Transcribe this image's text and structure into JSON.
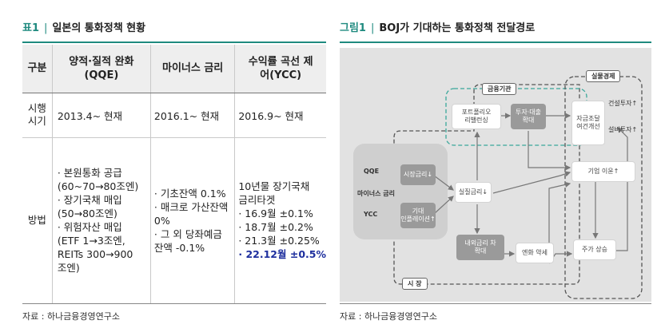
{
  "left": {
    "title_label": "표1",
    "title_text": "일본의 통화정책 현황",
    "table": {
      "headers": [
        "구분",
        "양적·질적 완화(QQE)",
        "마이너스 금리",
        "수익률 곡선 제어(YCC)"
      ],
      "row1": {
        "label": "시행 시기",
        "cells": [
          "2013.4~ 현재",
          "2016.1~ 현재",
          "2016.9~ 현재"
        ]
      },
      "row2": {
        "label": "방법",
        "qqe": [
          "· 본원통화 공급",
          "(60~70→80조엔)",
          "· 장기국채 매입",
          "(50→80조엔)",
          "· 위험자산 매입",
          "(ETF 1→3조엔,",
          "REITs 300→900",
          "조엔)"
        ],
        "neg": [
          "· 기초잔액 0.1%",
          "· 매크로 가산잔액",
          "0%",
          "· 그 외 당좌예금",
          "잔액 -0.1%"
        ],
        "ycc": [
          "10년물 장기국채",
          "금리타겟",
          "· 16.9월 ±0.1%",
          "· 18.7월 ±0.2%",
          "· 21.3월 ±0.25%"
        ],
        "ycc_highlight": "· 22.12월 ±0.5%"
      }
    },
    "source": "자료 : 하나금융경영연구소"
  },
  "right": {
    "title_label": "그림1",
    "title_text": "BOJ가 기대하는 통화정책 전달경로",
    "diagram": {
      "tag_finance": "금융기관",
      "tag_real": "실물경제",
      "tag_market": "시 장",
      "policies": [
        "QQE",
        "마이너스 금리",
        "YCC"
      ],
      "box_portfolio": "포트폴리오\n리밸런싱",
      "box_invest": "투자·대출\n확대",
      "box_funding": "자금조달\n여건개선",
      "label_construction": "건설투자↑",
      "label_equipment": "설비투자↑",
      "box_nominal_rate": "시장금리↓",
      "box_expected_inflation": "기대\n인플레이션↑",
      "box_real_rate": "실질금리↓",
      "box_profit": "기업 이윤↑",
      "box_rate_gap": "내외금리 차\n확대",
      "box_yen": "엔화 약세",
      "box_stock": "주가 상승"
    },
    "source": "자료 : 하나금융경영연구소"
  }
}
